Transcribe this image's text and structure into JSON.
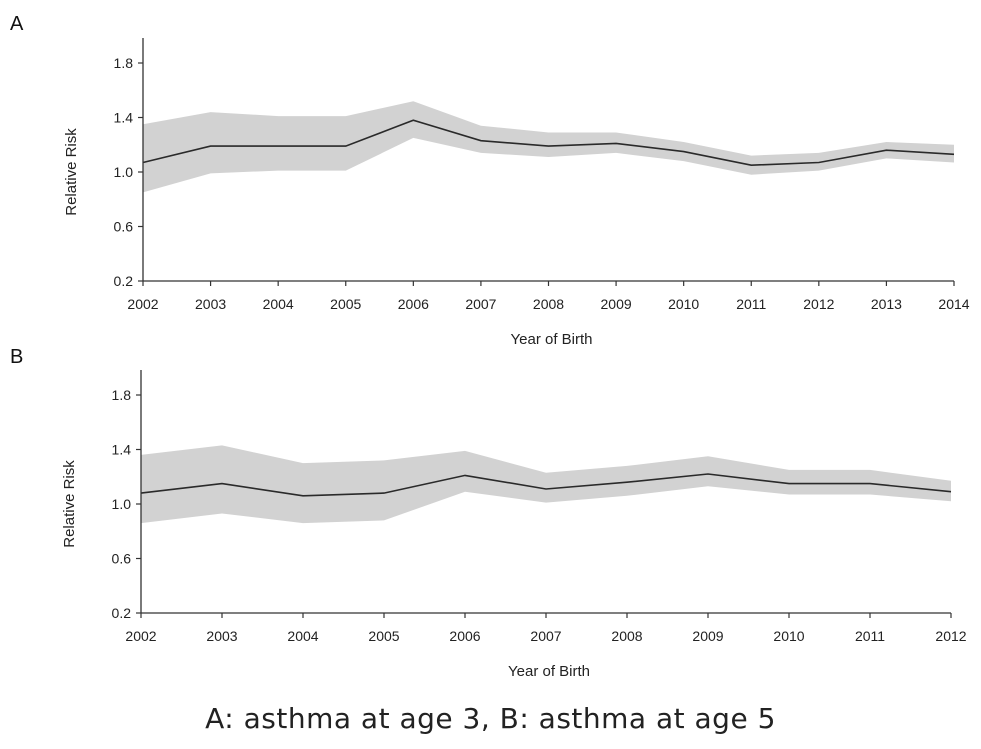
{
  "caption": "A: asthma at age 3, B: asthma at age 5",
  "chart_data": [
    {
      "type": "line",
      "panel": "A",
      "xlabel": "Year of Birth",
      "ylabel": "Relative Risk",
      "ylim": [
        0.2,
        2.0
      ],
      "yticks": [
        0.2,
        0.6,
        1.0,
        1.4,
        1.8
      ],
      "x": [
        2002,
        2003,
        2004,
        2005,
        2006,
        2007,
        2008,
        2009,
        2010,
        2011,
        2012,
        2013,
        2014
      ],
      "series": [
        {
          "values": [
            1.07,
            1.19,
            1.19,
            1.19,
            1.38,
            1.23,
            1.19,
            1.21,
            1.15,
            1.05,
            1.07,
            1.16,
            1.13
          ],
          "lower": [
            0.85,
            0.99,
            1.01,
            1.01,
            1.25,
            1.14,
            1.11,
            1.14,
            1.08,
            0.98,
            1.01,
            1.1,
            1.07
          ],
          "upper": [
            1.35,
            1.44,
            1.41,
            1.41,
            1.52,
            1.34,
            1.29,
            1.29,
            1.22,
            1.12,
            1.14,
            1.22,
            1.2
          ]
        }
      ],
      "colors": {
        "line": "#2a2a2a",
        "band": "#d2d2d2"
      },
      "grid": false
    },
    {
      "type": "line",
      "panel": "B",
      "xlabel": "Year of Birth",
      "ylabel": "Relative Risk",
      "ylim": [
        0.2,
        2.0
      ],
      "yticks": [
        0.2,
        0.6,
        1.0,
        1.4,
        1.8
      ],
      "x": [
        2002,
        2003,
        2004,
        2005,
        2006,
        2007,
        2008,
        2009,
        2010,
        2011,
        2012
      ],
      "series": [
        {
          "values": [
            1.08,
            1.15,
            1.06,
            1.08,
            1.21,
            1.11,
            1.16,
            1.22,
            1.15,
            1.15,
            1.09
          ],
          "lower": [
            0.86,
            0.93,
            0.86,
            0.88,
            1.09,
            1.01,
            1.06,
            1.13,
            1.07,
            1.07,
            1.02
          ],
          "upper": [
            1.36,
            1.43,
            1.3,
            1.32,
            1.39,
            1.23,
            1.28,
            1.35,
            1.25,
            1.25,
            1.17
          ]
        }
      ],
      "colors": {
        "line": "#2a2a2a",
        "band": "#d2d2d2"
      },
      "grid": false
    }
  ]
}
